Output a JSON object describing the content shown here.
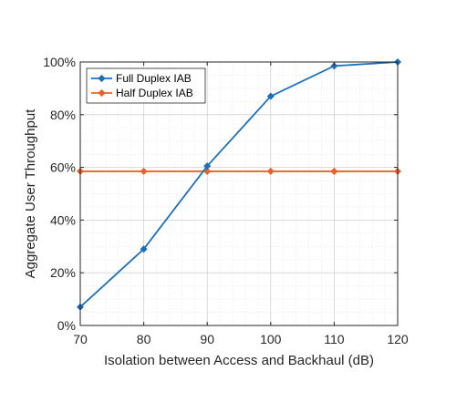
{
  "chart_data": {
    "type": "line",
    "title": "",
    "xlabel": "Isolation between Access and Backhaul (dB)",
    "ylabel": "Aggregate User Throughput",
    "x": [
      70,
      80,
      90,
      100,
      110,
      120
    ],
    "xlim": [
      70,
      120
    ],
    "ylim": [
      0,
      100
    ],
    "x_ticks": [
      "70",
      "80",
      "90",
      "100",
      "110",
      "120"
    ],
    "y_ticks": [
      "0%",
      "20%",
      "40%",
      "60%",
      "80%",
      "100%"
    ],
    "grid": "on (major and minor)",
    "legend_placement": "top-left",
    "series": [
      {
        "name": "Full Duplex IAB",
        "color": "#1f6fb8",
        "marker": "diamond",
        "values": [
          7,
          29,
          60.5,
          87,
          98.5,
          100
        ]
      },
      {
        "name": "Half Duplex IAB",
        "color": "#e8622a",
        "marker": "diamond",
        "values": [
          58.5,
          58.5,
          58.5,
          58.5,
          58.5,
          58.5
        ]
      }
    ]
  }
}
